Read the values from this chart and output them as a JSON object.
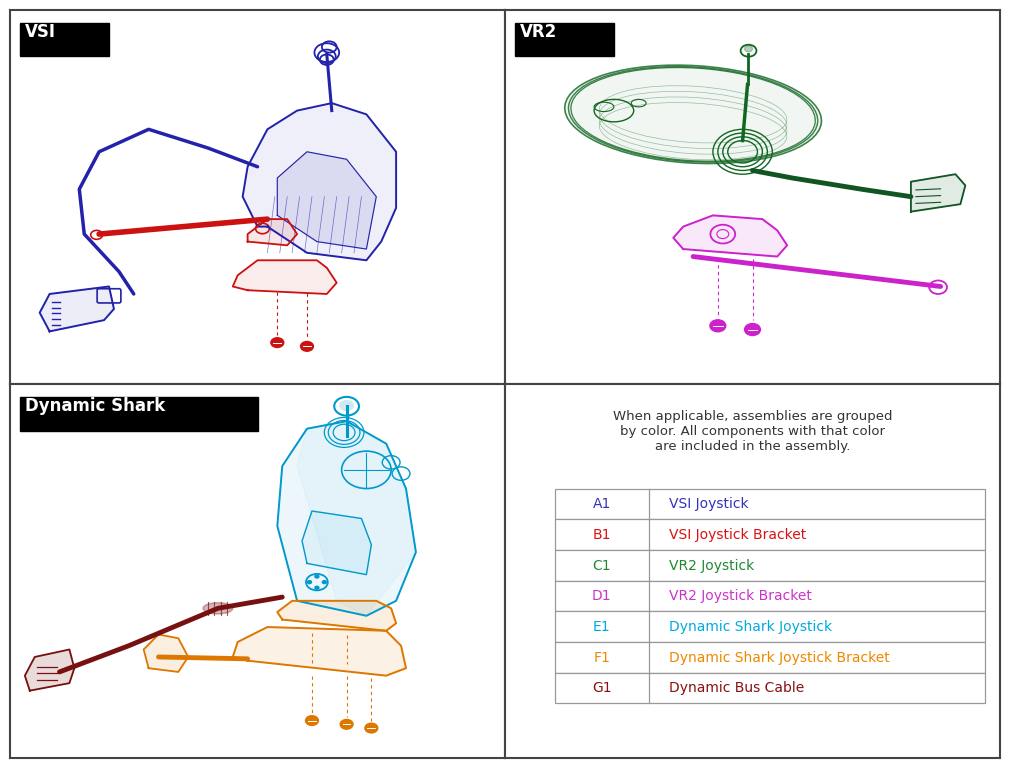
{
  "bg_color": "#ffffff",
  "border_color": "#444444",
  "panel_labels": {
    "vsi": "VSI",
    "vr2": "VR2",
    "dynamic": "Dynamic Shark"
  },
  "label_bg": "#111111",
  "label_fg": "#ffffff",
  "description_text": "When applicable, assemblies are grouped\nby color. All components with that color\nare included in the assembly.",
  "table_rows": [
    {
      "code": "A1",
      "label": "VSI Joystick",
      "color": "#3333bb"
    },
    {
      "code": "B1",
      "label": "VSI Joystick Bracket",
      "color": "#dd1111"
    },
    {
      "code": "C1",
      "label": "VR2 Joystick",
      "color": "#228833"
    },
    {
      "code": "D1",
      "label": "VR2 Joystick Bracket",
      "color": "#cc33cc"
    },
    {
      "code": "E1",
      "label": "Dynamic Shark Joystick",
      "color": "#00aadd"
    },
    {
      "code": "F1",
      "label": "Dynamic Shark Joystick Bracket",
      "color": "#ee8800"
    },
    {
      "code": "G1",
      "label": "Dynamic Bus Cable",
      "color": "#881111"
    }
  ],
  "colors": {
    "vsi_joystick": "#2222aa",
    "vsi_bracket": "#cc1111",
    "vr2_joystick": "#116622",
    "vr2_bracket": "#cc22cc",
    "vr2_cable": "#115522",
    "dynamic_joystick": "#0099cc",
    "dynamic_bracket": "#dd7700",
    "dynamic_cable": "#771111"
  }
}
